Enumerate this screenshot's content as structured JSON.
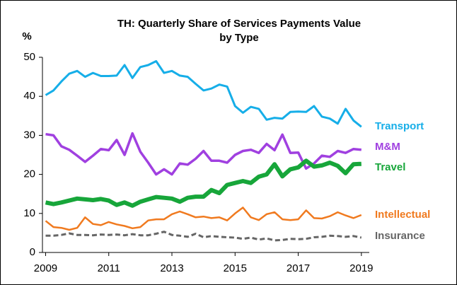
{
  "chart_data": {
    "type": "line",
    "title": [
      "TH: Quarterly Share of Services Payments Value",
      "by Type"
    ],
    "y_label": "%",
    "x": [
      2009,
      2009.25,
      2009.5,
      2009.75,
      2010,
      2010.25,
      2010.5,
      2010.75,
      2011,
      2011.25,
      2011.5,
      2011.75,
      2012,
      2012.25,
      2012.5,
      2012.75,
      2013,
      2013.25,
      2013.5,
      2013.75,
      2014,
      2014.25,
      2014.5,
      2014.75,
      2015,
      2015.25,
      2015.5,
      2015.75,
      2016,
      2016.25,
      2016.5,
      2016.75,
      2017,
      2017.25,
      2017.5,
      2017.75,
      2018,
      2018.25,
      2018.5,
      2018.75,
      2019
    ],
    "series": [
      {
        "name": "Transport",
        "color": "#16aee8",
        "values": [
          40.3,
          41.5,
          43.8,
          45.8,
          46.5,
          45,
          46,
          45.2,
          45.2,
          45.3,
          48,
          44.7,
          47.5,
          48,
          49,
          46,
          46.5,
          45.3,
          45,
          43.2,
          41.5,
          42,
          43,
          42.5,
          37.5,
          35.8,
          37.3,
          36.8,
          34,
          34.5,
          34.3,
          36,
          36.1,
          36,
          37.5,
          34.8,
          34.3,
          33,
          36.8,
          33.8,
          32.2
        ]
      },
      {
        "name": "M&M",
        "color": "#a040e0",
        "values": [
          30.3,
          30,
          27.2,
          26.3,
          24.8,
          23.2,
          24.8,
          26.5,
          26.2,
          28.8,
          25,
          30.5,
          25.8,
          23,
          20,
          21.3,
          20,
          22.8,
          22.5,
          24,
          26,
          23.5,
          23.5,
          23,
          25,
          26,
          26.3,
          25.5,
          27.8,
          26.2,
          30.2,
          25.5,
          25.6,
          21.5,
          22.8,
          24.8,
          24.5,
          26,
          25.5,
          26.5,
          26.3
        ]
      },
      {
        "name": "Travel",
        "color": "#17a63a",
        "values": [
          12.8,
          12.4,
          12.8,
          13.3,
          13.8,
          13.6,
          13.4,
          13.7,
          13.3,
          12.2,
          12.8,
          12,
          13,
          13.6,
          14.2,
          14,
          13.8,
          13,
          14,
          14.3,
          14.3,
          16,
          15.2,
          17.3,
          17.8,
          18.3,
          17.8,
          19.4,
          20,
          22.6,
          19.5,
          21.3,
          21.8,
          23.5,
          22,
          22.3,
          23,
          22.2,
          20.3,
          22.6,
          22.7
        ]
      },
      {
        "name": "Intellectual",
        "color": "#f07a1f",
        "values": [
          8.1,
          6.5,
          6.3,
          5.8,
          6.3,
          9,
          7.3,
          7,
          7.8,
          7.2,
          6.8,
          6.2,
          6.5,
          8.2,
          8.5,
          8.5,
          9.8,
          10.5,
          9.8,
          9,
          9.2,
          8.8,
          9,
          8.2,
          10,
          11.5,
          9,
          8.3,
          9.8,
          10.3,
          8.5,
          8.3,
          8.5,
          10.8,
          8.8,
          8.7,
          9.3,
          10.3,
          9.5,
          8.8,
          9.6
        ]
      },
      {
        "name": "Insurance",
        "color": "#666666",
        "dashed": true,
        "values": [
          4.3,
          4.3,
          4.5,
          4.9,
          4.5,
          4.5,
          4.4,
          4.6,
          4.5,
          4.6,
          4.4,
          4.7,
          4.4,
          4.4,
          4.8,
          5.3,
          4.5,
          4.3,
          4,
          4.8,
          3.9,
          4.2,
          4,
          3.9,
          3.8,
          3.5,
          3.8,
          3.3,
          3.6,
          3.1,
          3.2,
          3.5,
          3.4,
          3.5,
          3.9,
          4,
          4.3,
          4.2,
          4,
          4.2,
          3.8
        ]
      }
    ],
    "xlim": [
      2008.9,
      2019.25
    ],
    "xticks": [
      2009,
      2011,
      2013,
      2015,
      2017,
      2019
    ],
    "ylim": [
      0,
      50
    ],
    "yticks": [
      0,
      10,
      20,
      30,
      40,
      50
    ]
  }
}
